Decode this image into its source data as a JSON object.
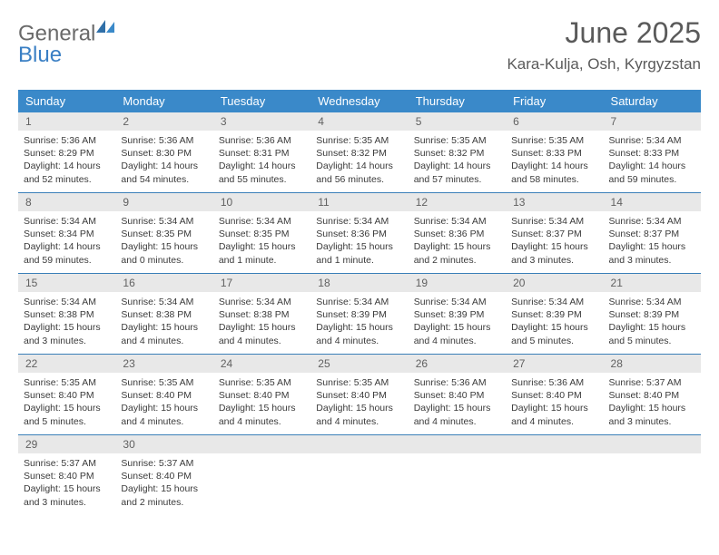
{
  "brand": {
    "part1": "General",
    "part2": "Blue"
  },
  "title": "June 2025",
  "location": "Kara-Kulja, Osh, Kyrgyzstan",
  "colors": {
    "header_bg": "#3a89c9",
    "header_text": "#ffffff",
    "daynum_bg": "#e8e8e8",
    "week_border": "#3a7fb8",
    "logo_blue": "#3a7fc4",
    "logo_gray": "#6a6a6a"
  },
  "weekdays": [
    "Sunday",
    "Monday",
    "Tuesday",
    "Wednesday",
    "Thursday",
    "Friday",
    "Saturday"
  ],
  "days": [
    {
      "n": "1",
      "sr": "5:36 AM",
      "ss": "8:29 PM",
      "dl": "14 hours and 52 minutes."
    },
    {
      "n": "2",
      "sr": "5:36 AM",
      "ss": "8:30 PM",
      "dl": "14 hours and 54 minutes."
    },
    {
      "n": "3",
      "sr": "5:36 AM",
      "ss": "8:31 PM",
      "dl": "14 hours and 55 minutes."
    },
    {
      "n": "4",
      "sr": "5:35 AM",
      "ss": "8:32 PM",
      "dl": "14 hours and 56 minutes."
    },
    {
      "n": "5",
      "sr": "5:35 AM",
      "ss": "8:32 PM",
      "dl": "14 hours and 57 minutes."
    },
    {
      "n": "6",
      "sr": "5:35 AM",
      "ss": "8:33 PM",
      "dl": "14 hours and 58 minutes."
    },
    {
      "n": "7",
      "sr": "5:34 AM",
      "ss": "8:33 PM",
      "dl": "14 hours and 59 minutes."
    },
    {
      "n": "8",
      "sr": "5:34 AM",
      "ss": "8:34 PM",
      "dl": "14 hours and 59 minutes."
    },
    {
      "n": "9",
      "sr": "5:34 AM",
      "ss": "8:35 PM",
      "dl": "15 hours and 0 minutes."
    },
    {
      "n": "10",
      "sr": "5:34 AM",
      "ss": "8:35 PM",
      "dl": "15 hours and 1 minute."
    },
    {
      "n": "11",
      "sr": "5:34 AM",
      "ss": "8:36 PM",
      "dl": "15 hours and 1 minute."
    },
    {
      "n": "12",
      "sr": "5:34 AM",
      "ss": "8:36 PM",
      "dl": "15 hours and 2 minutes."
    },
    {
      "n": "13",
      "sr": "5:34 AM",
      "ss": "8:37 PM",
      "dl": "15 hours and 3 minutes."
    },
    {
      "n": "14",
      "sr": "5:34 AM",
      "ss": "8:37 PM",
      "dl": "15 hours and 3 minutes."
    },
    {
      "n": "15",
      "sr": "5:34 AM",
      "ss": "8:38 PM",
      "dl": "15 hours and 3 minutes."
    },
    {
      "n": "16",
      "sr": "5:34 AM",
      "ss": "8:38 PM",
      "dl": "15 hours and 4 minutes."
    },
    {
      "n": "17",
      "sr": "5:34 AM",
      "ss": "8:38 PM",
      "dl": "15 hours and 4 minutes."
    },
    {
      "n": "18",
      "sr": "5:34 AM",
      "ss": "8:39 PM",
      "dl": "15 hours and 4 minutes."
    },
    {
      "n": "19",
      "sr": "5:34 AM",
      "ss": "8:39 PM",
      "dl": "15 hours and 4 minutes."
    },
    {
      "n": "20",
      "sr": "5:34 AM",
      "ss": "8:39 PM",
      "dl": "15 hours and 5 minutes."
    },
    {
      "n": "21",
      "sr": "5:34 AM",
      "ss": "8:39 PM",
      "dl": "15 hours and 5 minutes."
    },
    {
      "n": "22",
      "sr": "5:35 AM",
      "ss": "8:40 PM",
      "dl": "15 hours and 5 minutes."
    },
    {
      "n": "23",
      "sr": "5:35 AM",
      "ss": "8:40 PM",
      "dl": "15 hours and 4 minutes."
    },
    {
      "n": "24",
      "sr": "5:35 AM",
      "ss": "8:40 PM",
      "dl": "15 hours and 4 minutes."
    },
    {
      "n": "25",
      "sr": "5:35 AM",
      "ss": "8:40 PM",
      "dl": "15 hours and 4 minutes."
    },
    {
      "n": "26",
      "sr": "5:36 AM",
      "ss": "8:40 PM",
      "dl": "15 hours and 4 minutes."
    },
    {
      "n": "27",
      "sr": "5:36 AM",
      "ss": "8:40 PM",
      "dl": "15 hours and 4 minutes."
    },
    {
      "n": "28",
      "sr": "5:37 AM",
      "ss": "8:40 PM",
      "dl": "15 hours and 3 minutes."
    },
    {
      "n": "29",
      "sr": "5:37 AM",
      "ss": "8:40 PM",
      "dl": "15 hours and 3 minutes."
    },
    {
      "n": "30",
      "sr": "5:37 AM",
      "ss": "8:40 PM",
      "dl": "15 hours and 2 minutes."
    }
  ],
  "labels": {
    "sunrise": "Sunrise:",
    "sunset": "Sunset:",
    "daylight": "Daylight:"
  }
}
